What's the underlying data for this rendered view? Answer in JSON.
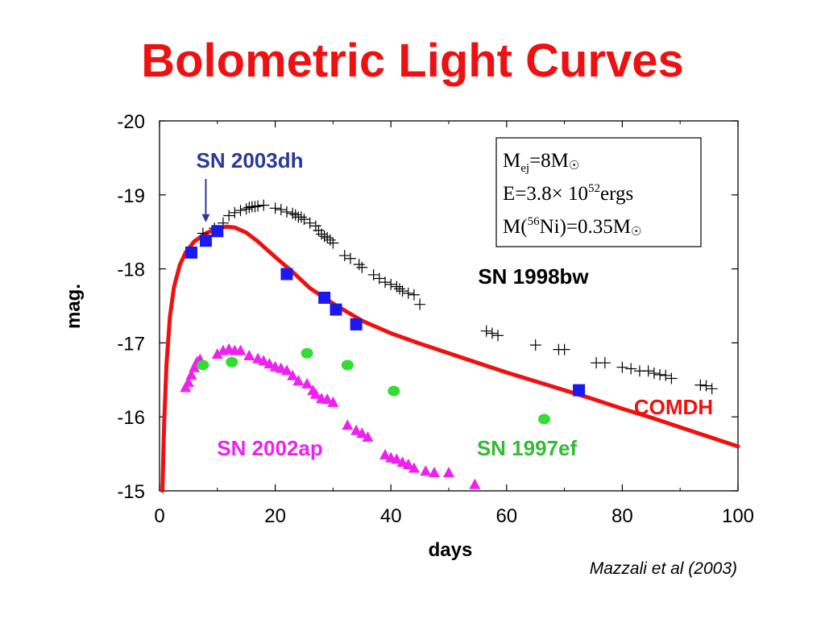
{
  "slide": {
    "title": "Bolometric Light Curves",
    "credit": "Mazzali et al (2003)"
  },
  "params_box": {
    "line1": {
      "main": "M",
      "sub": "ej",
      "rest": "=8M",
      "sun": "☉"
    },
    "line2": {
      "pre": "E=3.8",
      "times": "×",
      "base": " 10",
      "exp": "52",
      "post": "ergs"
    },
    "line3": {
      "pre": "M(",
      "exp": "56",
      "mid": "Ni)=0.35M",
      "sun": "☉"
    }
  },
  "chart_data": {
    "type": "scatter",
    "xlabel": "days",
    "ylabel": "mag.",
    "xlim": [
      0,
      100
    ],
    "ylim": [
      -15,
      -20
    ],
    "y_inverted": true,
    "xticks": [
      "0",
      "20",
      "40",
      "60",
      "80",
      "100"
    ],
    "xtick_values": [
      0,
      20,
      40,
      60,
      80,
      100
    ],
    "yticks": [
      "-20",
      "-19",
      "-18",
      "-17",
      "-16",
      "-15"
    ],
    "ytick_values": [
      -20,
      -19,
      -18,
      -17,
      -16,
      -15
    ],
    "grid": false,
    "annotation": {
      "text": "SN 2003dh",
      "arrow_to": [
        8,
        -18.5
      ]
    },
    "series": [
      {
        "name": "SN 2003dh",
        "marker": "square",
        "color": "#1a1aee",
        "x": [
          5.5,
          8.0,
          10.0,
          22.0,
          28.5,
          30.5,
          34.0,
          72.5
        ],
        "y": [
          -18.22,
          -18.38,
          -18.51,
          -17.93,
          -17.61,
          -17.45,
          -17.25,
          -16.36
        ]
      },
      {
        "name": "SN 1998bw",
        "marker": "plus",
        "color": "#000000",
        "x": [
          7.5,
          9.5,
          11.0,
          12.0,
          13.0,
          14.0,
          15.0,
          15.5,
          16.0,
          16.5,
          17.0,
          18.0,
          20.0,
          21.0,
          22.0,
          23.0,
          23.5,
          24.0,
          24.5,
          25.0,
          26.0,
          27.0,
          27.5,
          28.0,
          28.5,
          29.0,
          29.5,
          30.0,
          32.0,
          33.0,
          34.5,
          35.0,
          37.0,
          38.0,
          39.0,
          40.0,
          41.0,
          41.5,
          42.0,
          43.0,
          44.0,
          45.0,
          56.5,
          57.5,
          58.5,
          65.0,
          69.0,
          70.0,
          75.5,
          77.0,
          80.0,
          81.5,
          83.0,
          84.5,
          85.5,
          86.5,
          87.5,
          88.5,
          93.5,
          94.5,
          95.5
        ],
        "y": [
          -18.48,
          -18.55,
          -18.62,
          -18.72,
          -18.76,
          -18.79,
          -18.81,
          -18.83,
          -18.84,
          -18.84,
          -18.85,
          -18.86,
          -18.82,
          -18.8,
          -18.77,
          -18.75,
          -18.73,
          -18.7,
          -18.7,
          -18.67,
          -18.62,
          -18.58,
          -18.52,
          -18.47,
          -18.44,
          -18.42,
          -18.39,
          -18.35,
          -18.18,
          -18.14,
          -18.06,
          -18.02,
          -17.92,
          -17.87,
          -17.82,
          -17.79,
          -17.76,
          -17.73,
          -17.7,
          -17.67,
          -17.65,
          -17.52,
          -17.16,
          -17.13,
          -17.1,
          -16.97,
          -16.91,
          -16.91,
          -16.73,
          -16.73,
          -16.67,
          -16.65,
          -16.62,
          -16.62,
          -16.59,
          -16.57,
          -16.56,
          -16.52,
          -16.43,
          -16.42,
          -16.38
        ]
      },
      {
        "name": "SN 2002ap",
        "marker": "triangle",
        "color": "#ee22ee",
        "x": [
          4.5,
          5.0,
          5.5,
          6.0,
          6.5,
          7.0,
          10.0,
          11.0,
          12.0,
          13.0,
          14.0,
          15.5,
          17.0,
          18.0,
          19.0,
          20.0,
          21.0,
          22.0,
          23.0,
          24.0,
          25.5,
          26.5,
          27.0,
          28.0,
          29.0,
          30.0,
          32.5,
          34.0,
          35.0,
          36.0,
          39.0,
          40.0,
          41.0,
          42.0,
          43.0,
          44.0,
          46.0,
          47.5,
          50.0,
          54.5
        ],
        "y": [
          -16.4,
          -16.47,
          -16.57,
          -16.67,
          -16.75,
          -16.78,
          -16.85,
          -16.9,
          -16.92,
          -16.9,
          -16.9,
          -16.83,
          -16.79,
          -16.76,
          -16.72,
          -16.68,
          -16.66,
          -16.63,
          -16.56,
          -16.49,
          -16.45,
          -16.36,
          -16.31,
          -16.25,
          -16.24,
          -16.2,
          -15.89,
          -15.82,
          -15.78,
          -15.73,
          -15.49,
          -15.45,
          -15.43,
          -15.39,
          -15.36,
          -15.31,
          -15.27,
          -15.25,
          -15.25,
          -15.09
        ]
      },
      {
        "name": "SN 1997ef",
        "marker": "circle",
        "color": "#33dd33",
        "x": [
          7.5,
          12.5,
          25.5,
          32.5,
          40.5,
          66.5
        ],
        "y": [
          -16.7,
          -16.74,
          -16.86,
          -16.7,
          -16.35,
          -15.97
        ]
      },
      {
        "name": "COMDH",
        "marker": "line",
        "color": "#ee1111",
        "x": [
          0.5,
          0.8,
          1.2,
          1.8,
          2.5,
          3.5,
          4.5,
          6.0,
          8.0,
          10.0,
          11.5,
          13.0,
          15.0,
          17.0,
          20.0,
          23.0,
          26.0,
          30.0,
          35.0,
          40.0,
          45.0,
          50.0,
          55.0,
          60.0,
          65.0,
          70.0,
          75.0,
          80.0,
          85.0,
          90.0,
          95.0,
          100.0
        ],
        "y": [
          -15.0,
          -15.9,
          -16.7,
          -17.35,
          -17.75,
          -18.05,
          -18.22,
          -18.37,
          -18.48,
          -18.55,
          -18.57,
          -18.56,
          -18.49,
          -18.37,
          -18.16,
          -17.96,
          -17.74,
          -17.53,
          -17.3,
          -17.13,
          -16.99,
          -16.86,
          -16.73,
          -16.6,
          -16.48,
          -16.36,
          -16.24,
          -16.11,
          -15.99,
          -15.86,
          -15.73,
          -15.6
        ]
      }
    ]
  }
}
